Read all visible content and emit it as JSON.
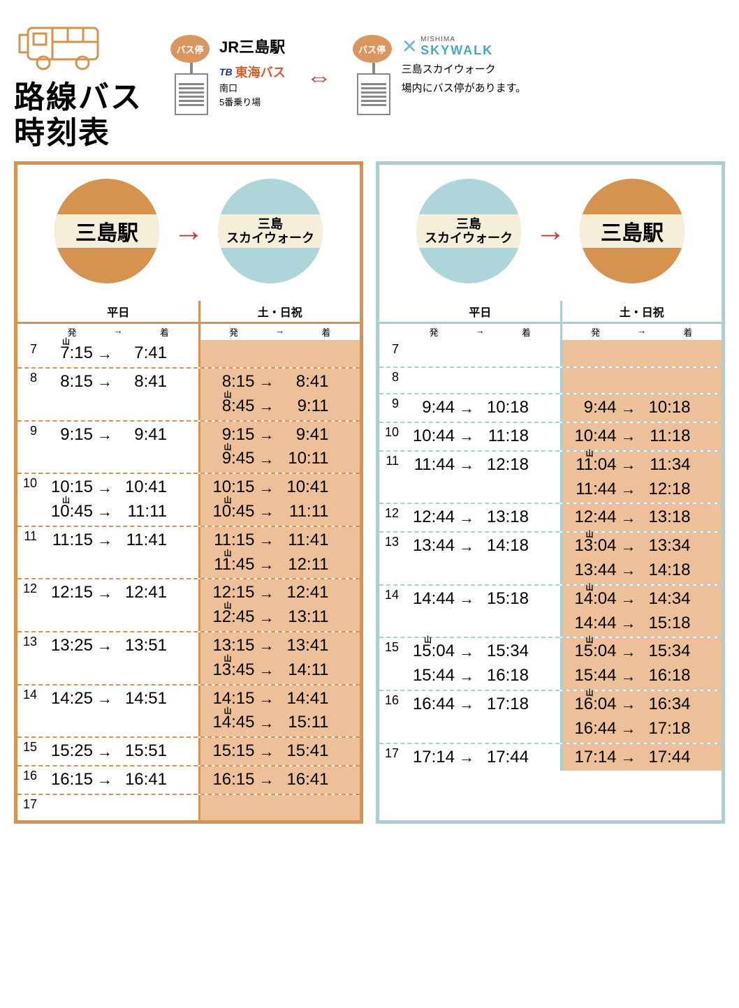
{
  "title": "路線バス\n時刻表",
  "header": {
    "stop_label": "バス停",
    "station_name": "JR三島駅",
    "company_prefix": "TB",
    "company_name": "東海バス",
    "south_exit": "南口",
    "platform": "5番乗り場",
    "skywalk_small": "MISHIMA",
    "skywalk_main": "SKYWALK",
    "note_line1": "三島スカイウォーク",
    "note_line2": "場内にバス停があります。",
    "arrow": "⇔"
  },
  "labels": {
    "mishima": "三島駅",
    "skywalk_l1": "三島",
    "skywalk_l2": "スカイウォーク",
    "weekday": "平日",
    "weekend": "土・日祝",
    "dep": "発",
    "arr": "着",
    "to": "→",
    "yama": "山"
  },
  "colors": {
    "orange": "#d6924f",
    "blue": "#a9cfd3",
    "band": "#f5eed8",
    "weekend_fill": "#eec09a",
    "red": "#c0392b",
    "company": "#d85a2a",
    "tb": "#1b3a8a",
    "sky": "#4aa8b0"
  },
  "outbound": {
    "hours": [
      7,
      8,
      9,
      10,
      11,
      12,
      13,
      14,
      15,
      16,
      17
    ],
    "weekday": {
      "7": [
        {
          "d": "7:15",
          "a": "7:41",
          "y": true
        }
      ],
      "8": [
        {
          "d": "8:15",
          "a": "8:41"
        }
      ],
      "9": [
        {
          "d": "9:15",
          "a": "9:41"
        }
      ],
      "10": [
        {
          "d": "10:15",
          "a": "10:41"
        },
        {
          "d": "10:45",
          "a": "11:11",
          "y": true
        }
      ],
      "11": [
        {
          "d": "11:15",
          "a": "11:41"
        }
      ],
      "12": [
        {
          "d": "12:15",
          "a": "12:41"
        }
      ],
      "13": [
        {
          "d": "13:25",
          "a": "13:51"
        }
      ],
      "14": [
        {
          "d": "14:25",
          "a": "14:51"
        }
      ],
      "15": [
        {
          "d": "15:25",
          "a": "15:51"
        }
      ],
      "16": [
        {
          "d": "16:15",
          "a": "16:41"
        }
      ],
      "17": []
    },
    "weekend": {
      "7": [],
      "8": [
        {
          "d": "8:15",
          "a": "8:41"
        },
        {
          "d": "8:45",
          "a": "9:11",
          "y": true
        }
      ],
      "9": [
        {
          "d": "9:15",
          "a": "9:41"
        },
        {
          "d": "9:45",
          "a": "10:11",
          "y": true
        }
      ],
      "10": [
        {
          "d": "10:15",
          "a": "10:41"
        },
        {
          "d": "10:45",
          "a": "11:11",
          "y": true
        }
      ],
      "11": [
        {
          "d": "11:15",
          "a": "11:41"
        },
        {
          "d": "11:45",
          "a": "12:11",
          "y": true
        }
      ],
      "12": [
        {
          "d": "12:15",
          "a": "12:41"
        },
        {
          "d": "12:45",
          "a": "13:11",
          "y": true
        }
      ],
      "13": [
        {
          "d": "13:15",
          "a": "13:41"
        },
        {
          "d": "13:45",
          "a": "14:11",
          "y": true
        }
      ],
      "14": [
        {
          "d": "14:15",
          "a": "14:41"
        },
        {
          "d": "14:45",
          "a": "15:11",
          "y": true
        }
      ],
      "15": [
        {
          "d": "15:15",
          "a": "15:41"
        }
      ],
      "16": [
        {
          "d": "16:15",
          "a": "16:41"
        }
      ],
      "17": []
    }
  },
  "inbound": {
    "hours": [
      7,
      8,
      9,
      10,
      11,
      12,
      13,
      14,
      15,
      16,
      17
    ],
    "weekday": {
      "7": [],
      "8": [],
      "9": [
        {
          "d": "9:44",
          "a": "10:18"
        }
      ],
      "10": [
        {
          "d": "10:44",
          "a": "11:18"
        }
      ],
      "11": [
        {
          "d": "11:44",
          "a": "12:18"
        }
      ],
      "12": [
        {
          "d": "12:44",
          "a": "13:18"
        }
      ],
      "13": [
        {
          "d": "13:44",
          "a": "14:18"
        }
      ],
      "14": [
        {
          "d": "14:44",
          "a": "15:18"
        }
      ],
      "15": [
        {
          "d": "15:04",
          "a": "15:34",
          "y": true
        },
        {
          "d": "15:44",
          "a": "16:18"
        }
      ],
      "16": [
        {
          "d": "16:44",
          "a": "17:18"
        }
      ],
      "17": [
        {
          "d": "17:14",
          "a": "17:44"
        }
      ]
    },
    "weekend": {
      "7": [],
      "8": [],
      "9": [
        {
          "d": "9:44",
          "a": "10:18"
        }
      ],
      "10": [
        {
          "d": "10:44",
          "a": "11:18"
        }
      ],
      "11": [
        {
          "d": "11:04",
          "a": "11:34",
          "y": true
        },
        {
          "d": "11:44",
          "a": "12:18"
        }
      ],
      "12": [
        {
          "d": "12:44",
          "a": "13:18"
        }
      ],
      "13": [
        {
          "d": "13:04",
          "a": "13:34",
          "y": true
        },
        {
          "d": "13:44",
          "a": "14:18"
        }
      ],
      "14": [
        {
          "d": "14:04",
          "a": "14:34",
          "y": true
        },
        {
          "d": "14:44",
          "a": "15:18"
        }
      ],
      "15": [
        {
          "d": "15:04",
          "a": "15:34",
          "y": true
        },
        {
          "d": "15:44",
          "a": "16:18"
        }
      ],
      "16": [
        {
          "d": "16:04",
          "a": "16:34",
          "y": true
        },
        {
          "d": "16:44",
          "a": "17:18"
        }
      ],
      "17": [
        {
          "d": "17:14",
          "a": "17:44"
        }
      ]
    }
  }
}
